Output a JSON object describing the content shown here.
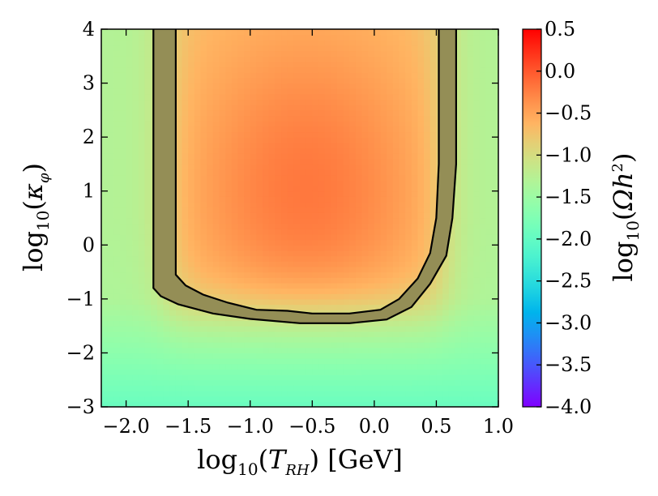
{
  "chart_data": {
    "type": "heatmap",
    "title": "",
    "xlabel": {
      "main": "log",
      "sub": "10",
      "open": "(",
      "var": "T",
      "varsub": "RH",
      "close": ")",
      "unit": " [GeV]"
    },
    "ylabel": {
      "main": "log",
      "sub": "10",
      "open": "(",
      "var": "κ",
      "varsub": "φ",
      "close": ")"
    },
    "colorbar_label": {
      "main": "log",
      "sub": "10",
      "open": "(",
      "var": "Ωh",
      "sup": "2",
      "close": ")"
    },
    "xlim": [
      -2.2,
      1.0
    ],
    "ylim": [
      -3,
      4
    ],
    "clim": [
      -4.0,
      0.5
    ],
    "x_ticks": [
      -2.0,
      -1.5,
      -1.0,
      -0.5,
      0.0,
      0.5,
      1.0
    ],
    "x_tick_labels": [
      "−2.0",
      "−1.5",
      "−1.0",
      "−0.5",
      "0.0",
      "0.5",
      "1.0"
    ],
    "y_ticks": [
      -3,
      -2,
      -1,
      0,
      1,
      2,
      3,
      4
    ],
    "y_tick_labels": [
      "−3",
      "−2",
      "−1",
      "0",
      "1",
      "2",
      "3",
      "4"
    ],
    "colorbar_ticks": [
      0.5,
      0.0,
      -0.5,
      -1.0,
      -1.5,
      -2.0,
      -2.5,
      -3.0,
      -3.5,
      -4.0
    ],
    "colorbar_tick_labels": [
      "0.5",
      "0.0",
      "−0.5",
      "−1.0",
      "−1.5",
      "−2.0",
      "−2.5",
      "−3.0",
      "−3.5",
      "−4.0"
    ],
    "colormap": "rainbow",
    "field": {
      "description_units": "log10(Omega h^2) over (log10 T_RH, log10 kappa_phi)",
      "peak_value": -0.2,
      "peak_at": [
        -0.55,
        1.0
      ],
      "background_value": -1.3,
      "bottom_value": -2.0
    },
    "contours": [
      {
        "level": -1.0,
        "label": "outer",
        "points": [
          [
            -1.78,
            4.0
          ],
          [
            -1.78,
            -0.8
          ],
          [
            -1.72,
            -0.95
          ],
          [
            -1.58,
            -1.1
          ],
          [
            -1.3,
            -1.27
          ],
          [
            -1.0,
            -1.37
          ],
          [
            -0.6,
            -1.45
          ],
          [
            -0.2,
            -1.45
          ],
          [
            0.1,
            -1.38
          ],
          [
            0.3,
            -1.15
          ],
          [
            0.45,
            -0.72
          ],
          [
            0.58,
            -0.2
          ],
          [
            0.63,
            0.5
          ],
          [
            0.66,
            1.5
          ],
          [
            0.66,
            4.0
          ]
        ]
      },
      {
        "level": -0.7,
        "label": "inner",
        "points": [
          [
            -1.6,
            4.0
          ],
          [
            -1.6,
            -0.55
          ],
          [
            -1.52,
            -0.75
          ],
          [
            -1.38,
            -0.92
          ],
          [
            -1.18,
            -1.07
          ],
          [
            -0.95,
            -1.2
          ],
          [
            -0.7,
            -1.22
          ],
          [
            -0.5,
            -1.27
          ],
          [
            -0.2,
            -1.27
          ],
          [
            0.05,
            -1.2
          ],
          [
            0.2,
            -1.0
          ],
          [
            0.35,
            -0.62
          ],
          [
            0.45,
            -0.15
          ],
          [
            0.5,
            0.5
          ],
          [
            0.52,
            1.5
          ],
          [
            0.52,
            4.0
          ]
        ]
      }
    ],
    "band_color": "#948e56"
  }
}
